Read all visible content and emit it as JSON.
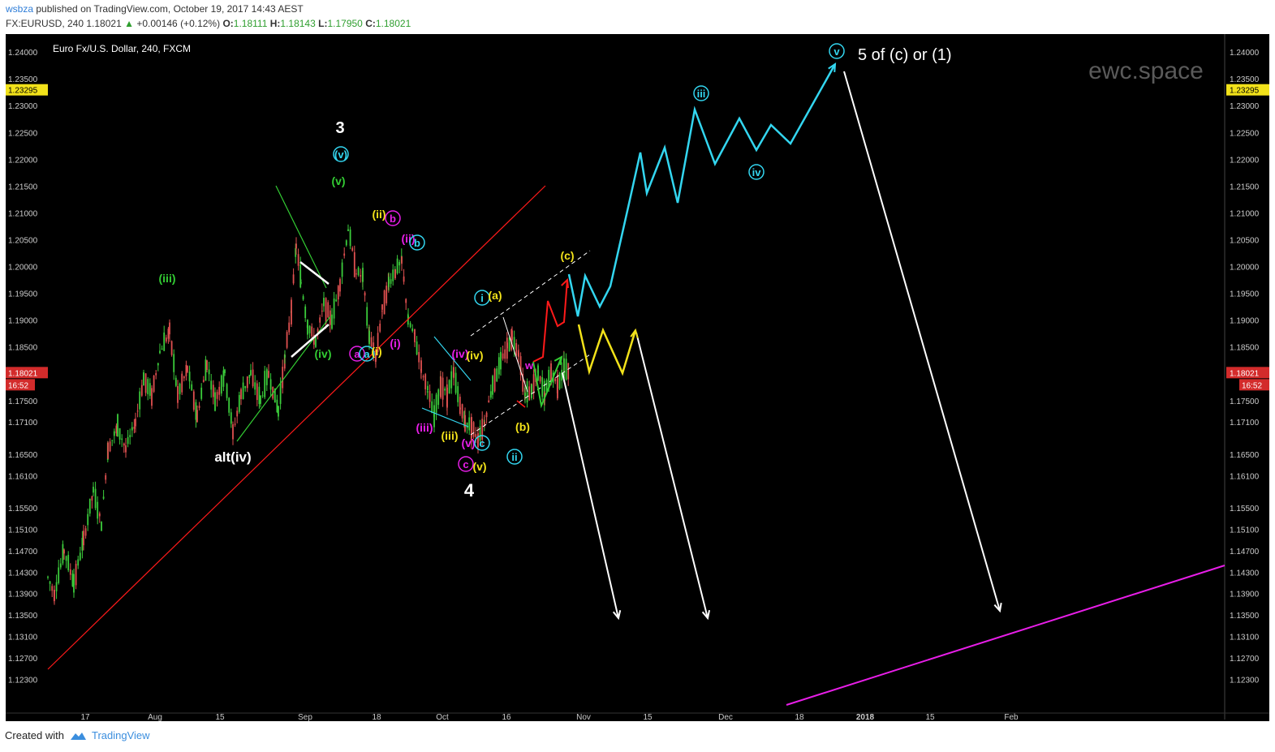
{
  "header": {
    "user": "wsbza",
    "published": "published on TradingView.com, October 19, 2017 14:43 AEST",
    "symbol": "FX:EURUSD, 240",
    "last": "1.18021",
    "arrow": "▲",
    "change": "+0.00146 (+0.12%)",
    "o_label": "O:",
    "o_val": "1.18111",
    "h_label": "H:",
    "h_val": "1.18143",
    "l_label": "L:",
    "l_val": "1.17950",
    "c_label": "C:",
    "c_val": "1.18021"
  },
  "footer": {
    "created_with": "Created with",
    "brand": "TradingView"
  },
  "colors": {
    "background": "#000000",
    "axis_text": "#cccccc",
    "watermark": "#5a5a5a",
    "cyan": "#33d6f0",
    "red": "#ff1a1a",
    "yellow": "#f2e21a",
    "green": "#33cc33",
    "magenta": "#e81ee8",
    "white": "#ffffff",
    "price_tag": "#d32b2b",
    "marker_tag": "#f2e21a"
  },
  "chart_data": {
    "type": "candlestick",
    "title": "Euro Fx/U.S. Dollar, 240, FXCM",
    "watermark": "ewc.space",
    "y_ticks": [
      "1.24000",
      "1.23500",
      "1.23000",
      "1.22500",
      "1.22000",
      "1.21500",
      "1.21000",
      "1.20500",
      "1.20000",
      "1.19500",
      "1.19000",
      "1.18500",
      "1.18021",
      "1.17500",
      "1.17100",
      "1.16500",
      "1.16100",
      "1.15500",
      "1.15100",
      "1.14700",
      "1.14300",
      "1.13900",
      "1.13500",
      "1.13100",
      "1.12700",
      "1.12300"
    ],
    "x_ticks": [
      "17",
      "Aug",
      "15",
      "Sep",
      "18",
      "Oct",
      "16",
      "Nov",
      "15",
      "Dec",
      "18",
      "2018",
      "15",
      "Feb"
    ],
    "x_tick_bold": "2018",
    "current_price": "1.18021",
    "current_time": "16:52",
    "marker_price": "1.23295",
    "price_path": [
      [
        0,
        1.142
      ],
      [
        8,
        1.139
      ],
      [
        20,
        1.147
      ],
      [
        32,
        1.141
      ],
      [
        44,
        1.149
      ],
      [
        56,
        1.158
      ],
      [
        66,
        1.152
      ],
      [
        74,
        1.166
      ],
      [
        86,
        1.17
      ],
      [
        96,
        1.166
      ],
      [
        108,
        1.171
      ],
      [
        118,
        1.179
      ],
      [
        128,
        1.176
      ],
      [
        138,
        1.184
      ],
      [
        150,
        1.188
      ],
      [
        160,
        1.176
      ],
      [
        172,
        1.181
      ],
      [
        184,
        1.172
      ],
      [
        196,
        1.182
      ],
      [
        206,
        1.175
      ],
      [
        218,
        1.18
      ],
      [
        228,
        1.169
      ],
      [
        238,
        1.176
      ],
      [
        250,
        1.18
      ],
      [
        262,
        1.175
      ],
      [
        272,
        1.18
      ],
      [
        284,
        1.173
      ],
      [
        292,
        1.183
      ],
      [
        300,
        1.192
      ],
      [
        306,
        1.204
      ],
      [
        312,
        1.197
      ],
      [
        320,
        1.189
      ],
      [
        330,
        1.186
      ],
      [
        340,
        1.193
      ],
      [
        350,
        1.19
      ],
      [
        360,
        1.197
      ],
      [
        370,
        1.207
      ],
      [
        380,
        1.199
      ],
      [
        388,
        1.198
      ],
      [
        396,
        1.187
      ],
      [
        404,
        1.183
      ],
      [
        412,
        1.192
      ],
      [
        420,
        1.197
      ],
      [
        428,
        1.199
      ],
      [
        436,
        1.201
      ],
      [
        444,
        1.19
      ],
      [
        452,
        1.187
      ],
      [
        460,
        1.181
      ],
      [
        468,
        1.177
      ],
      [
        476,
        1.172
      ],
      [
        484,
        1.178
      ],
      [
        492,
        1.176
      ],
      [
        500,
        1.18
      ],
      [
        508,
        1.174
      ],
      [
        514,
        1.171
      ],
      [
        522,
        1.17
      ],
      [
        530,
        1.168
      ],
      [
        538,
        1.171
      ],
      [
        548,
        1.178
      ],
      [
        558,
        1.182
      ],
      [
        566,
        1.185
      ],
      [
        572,
        1.187
      ],
      [
        580,
        1.184
      ],
      [
        588,
        1.176
      ],
      [
        596,
        1.177
      ],
      [
        604,
        1.18
      ],
      [
        612,
        1.176
      ],
      [
        620,
        1.18
      ],
      [
        628,
        1.178
      ],
      [
        636,
        1.181
      ],
      [
        642,
        1.18
      ]
    ],
    "wave_labels": {
      "three": "3",
      "four": "4",
      "v_green": "(v)",
      "iii_green": "(iii)",
      "iv_green": "(iv)",
      "alt_iv": "alt(iv)",
      "ii_yellow": "(ii)",
      "b_magenta": "b",
      "ii_magenta": "(ii)",
      "b_cyan": "b",
      "a_magenta": "a",
      "a_cyan": "a",
      "i_yellow": "(i)",
      "i_magenta": "(i)",
      "iii_magenta": "(iii)",
      "iii_yellow": "(iii)",
      "iv_magenta": "(iv)",
      "iv_yellow": "(iv)",
      "v_magenta": "(v)",
      "c_cyan": "c",
      "c_magenta": "c",
      "v_yellow": "(v)",
      "i_cyan": "i",
      "a_yellow": "(a)",
      "b_yellow": "(b)",
      "c_yellow": "(c)",
      "ii_cyan": "ii",
      "w_magenta": "w",
      "v_top": "v",
      "iii_cyan": "iii",
      "iv_cyan": "iv",
      "v_cyan_3": "v",
      "target": "5 of (c) or (1)"
    }
  }
}
